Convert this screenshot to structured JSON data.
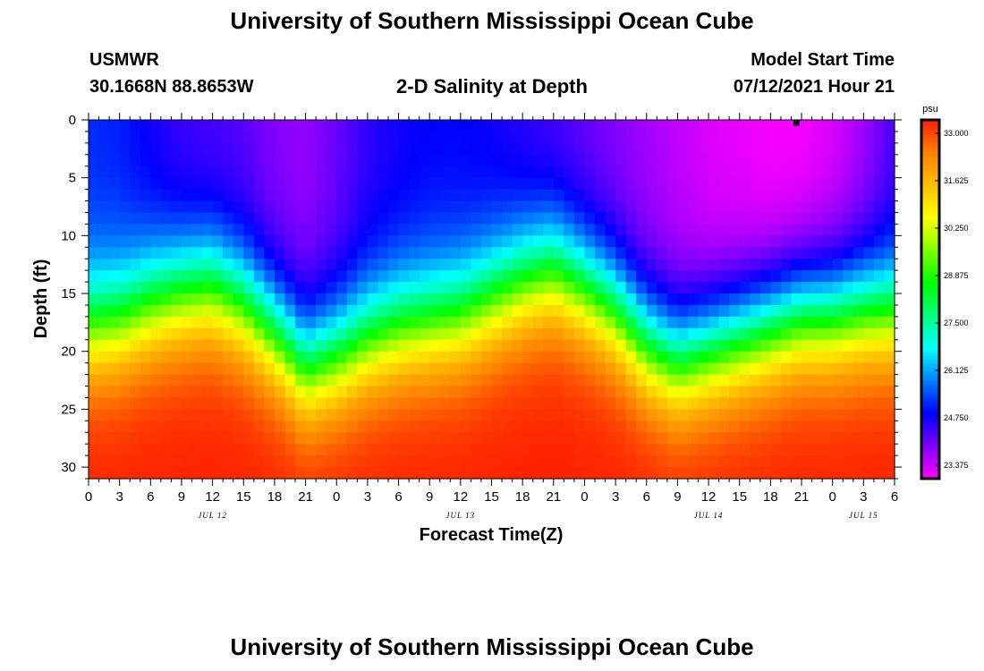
{
  "header": {
    "title": "University of Southern Mississippi Ocean Cube",
    "station": "USMWR",
    "coords": "30.1668N  88.8653W",
    "subtitle": "2-D Salinity at Depth",
    "model_label": "Model Start Time",
    "model_time": "07/12/2021 Hour 21"
  },
  "footer": {
    "title": "University of Southern Mississippi Ocean Cube"
  },
  "chart_data": {
    "type": "heatmap",
    "title": "2-D Salinity at Depth",
    "xlabel": "Forecast Time(Z)",
    "ylabel": "Depth (ft)",
    "x_ticks": [
      "0",
      "3",
      "6",
      "9",
      "12",
      "15",
      "18",
      "21",
      "0",
      "3",
      "6",
      "9",
      "12",
      "15",
      "18",
      "21",
      "0",
      "3",
      "6",
      "9",
      "12",
      "15",
      "18",
      "21",
      "0",
      "3",
      "6"
    ],
    "x_range_hours": [
      0,
      78
    ],
    "day_labels": [
      {
        "label": "JUL 12",
        "hour": 12
      },
      {
        "label": "JUL 13",
        "hour": 36
      },
      {
        "label": "JUL 14",
        "hour": 60
      },
      {
        "label": "JUL 15",
        "hour": 75
      }
    ],
    "y_ticks": [
      "0",
      "5",
      "10",
      "15",
      "20",
      "25",
      "30"
    ],
    "ylim": [
      0,
      31
    ],
    "y_inverted": true,
    "colorbar": {
      "unit": "psu",
      "min": 23.375,
      "max": 33.0,
      "tick_labels": [
        "33.000",
        "31.625",
        "30.250",
        "28.875",
        "27.500",
        "26.125",
        "24.750",
        "23.375"
      ],
      "colors": [
        "#ff00ff",
        "#8000ff",
        "#0000ff",
        "#0080ff",
        "#00ffff",
        "#00ff80",
        "#00ff00",
        "#80ff00",
        "#ffff00",
        "#ffbf00",
        "#ff8000",
        "#ff2000"
      ]
    },
    "marker": {
      "hour": 68.5,
      "depth": 0.2
    },
    "halocline_depth_ft": {
      "hours": [
        0,
        3,
        6,
        9,
        12,
        15,
        18,
        21,
        24,
        27,
        30,
        33,
        36,
        39,
        42,
        45,
        48,
        51,
        54,
        57,
        60,
        63,
        66,
        69,
        72,
        75,
        78
      ],
      "values": [
        18,
        17.5,
        16,
        15,
        14.5,
        16,
        18.5,
        21.5,
        20.5,
        19,
        18,
        17.5,
        17,
        15.5,
        14,
        13,
        14.5,
        16.5,
        19.5,
        21,
        20,
        19,
        18,
        17,
        17,
        16.5,
        16.5
      ]
    },
    "surface_salinity_psu": {
      "hours": [
        0,
        3,
        6,
        9,
        12,
        15,
        18,
        21,
        24,
        27,
        30,
        33,
        36,
        39,
        42,
        45,
        48,
        51,
        54,
        57,
        60,
        63,
        66,
        69,
        72,
        75,
        78
      ],
      "values": [
        25.4,
        25.3,
        25.0,
        24.7,
        24.6,
        24.5,
        24.2,
        24.1,
        24.4,
        24.8,
        25.0,
        25.1,
        25.1,
        25.0,
        24.8,
        24.6,
        24.4,
        24.2,
        24.0,
        23.8,
        23.6,
        23.5,
        23.4,
        23.4,
        23.6,
        24.0,
        24.6
      ]
    },
    "bottom_salinity_psu": 33.0
  }
}
